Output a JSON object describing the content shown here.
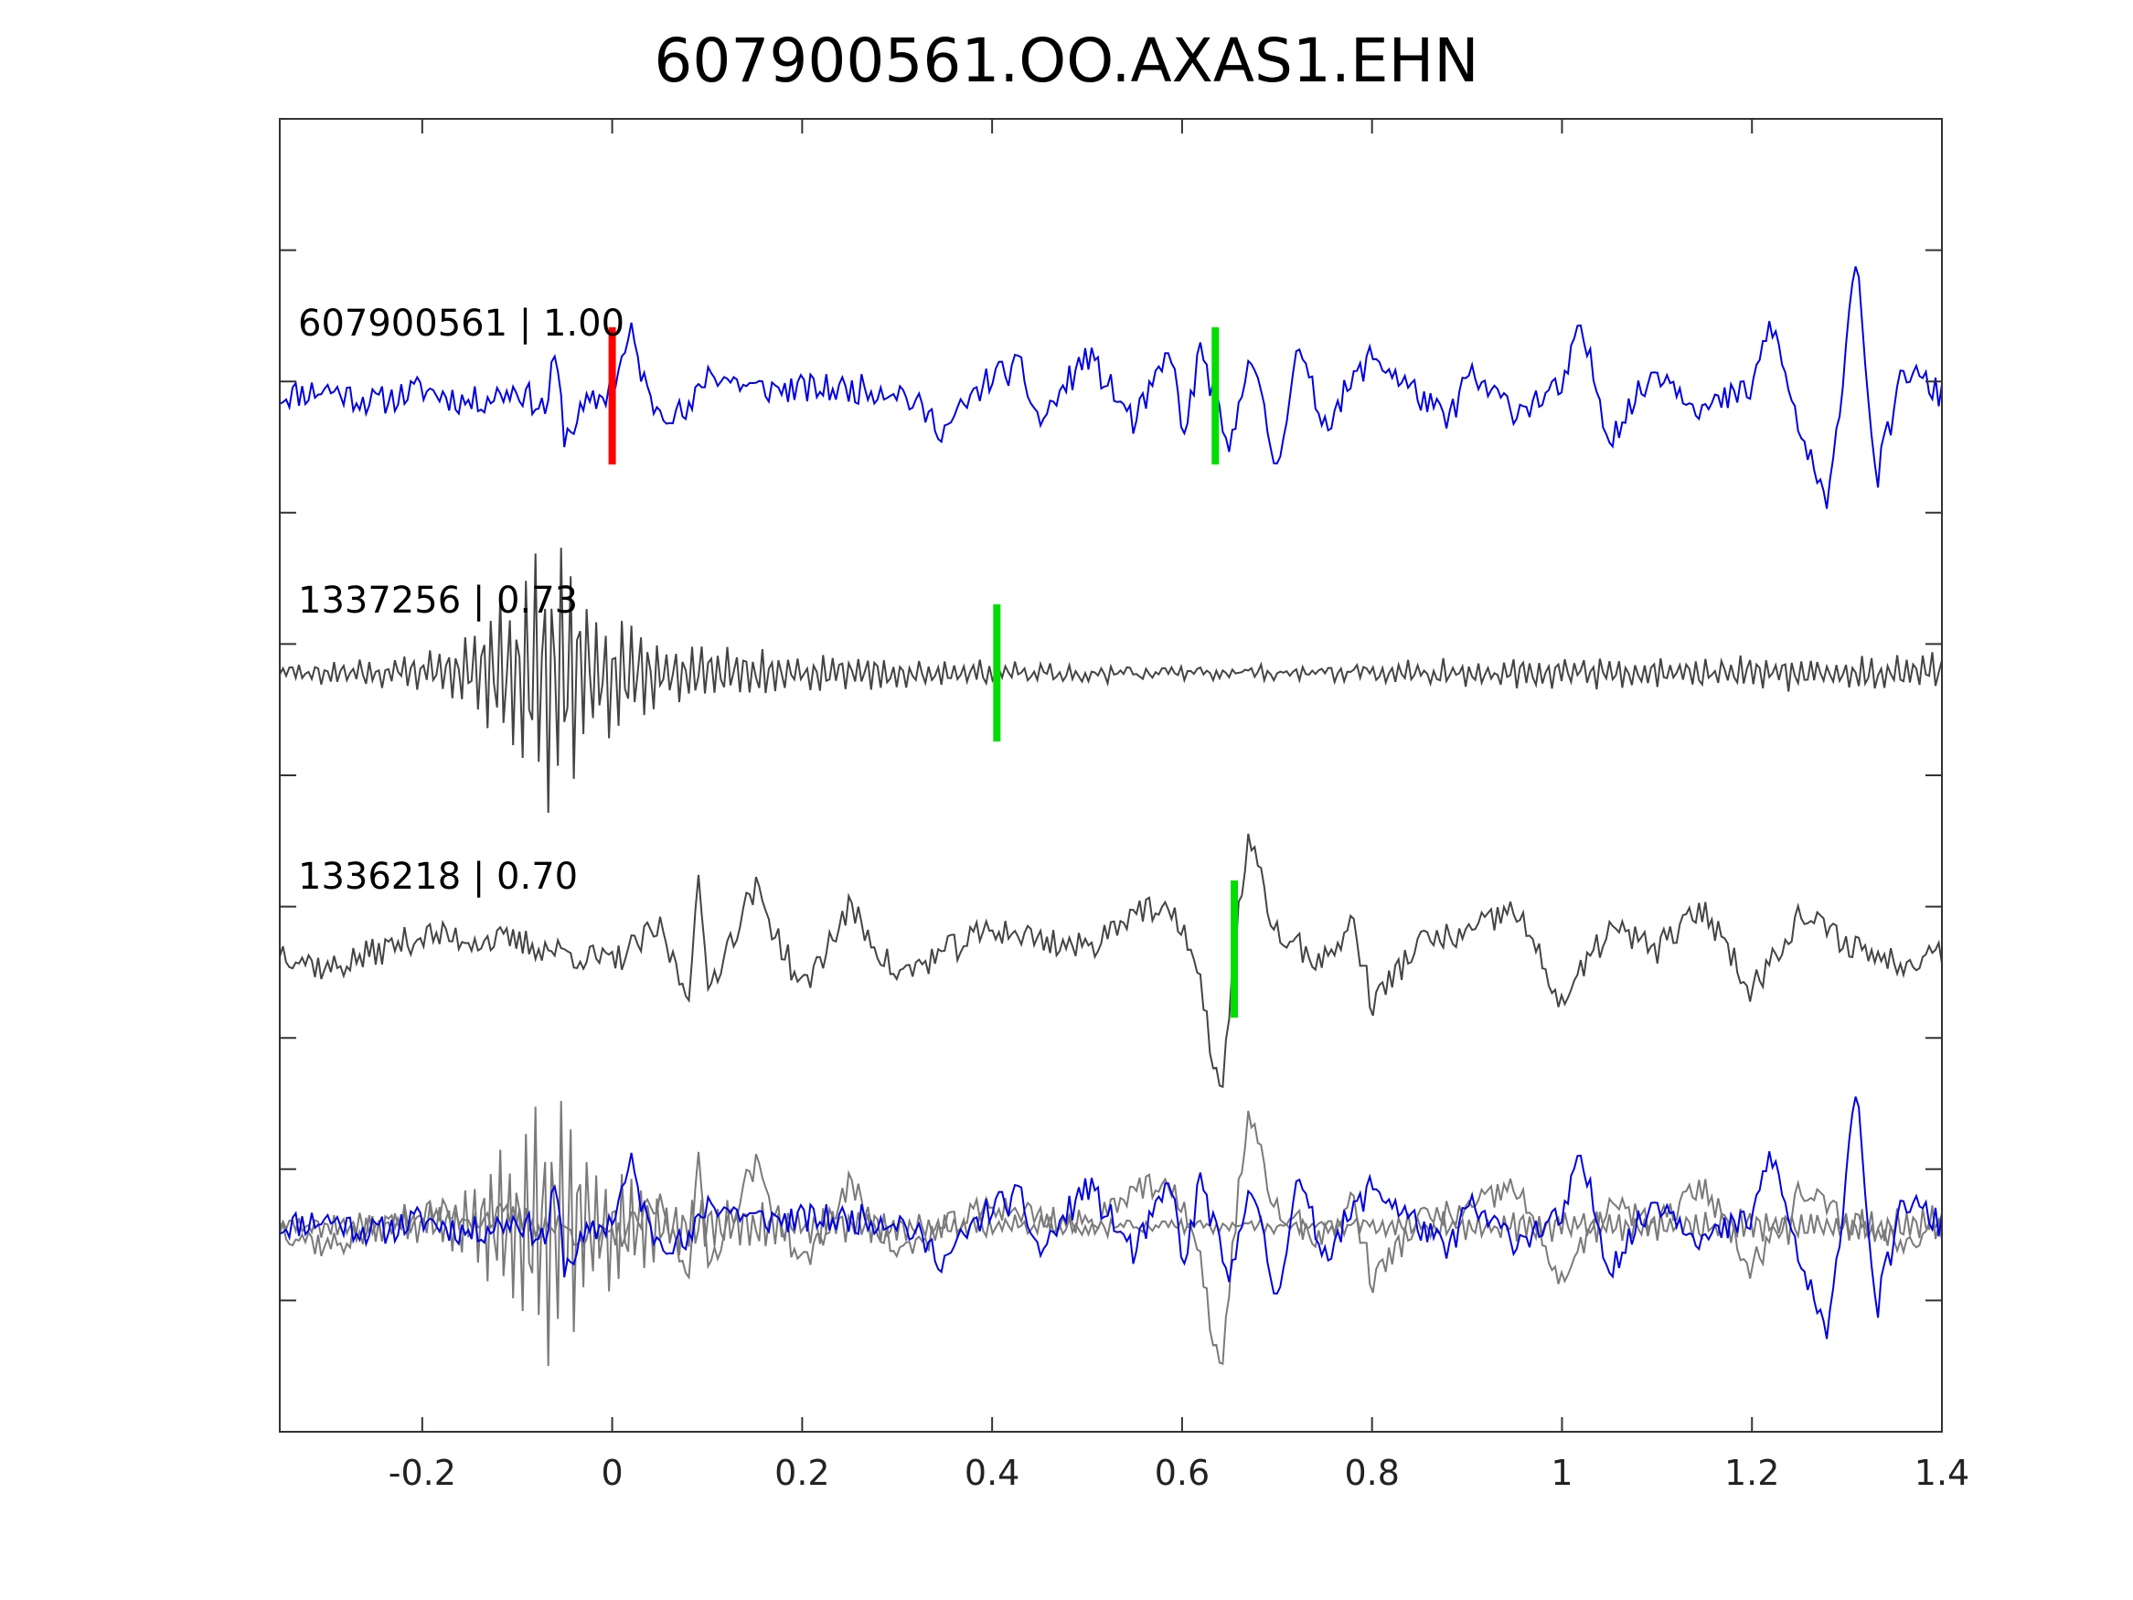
{
  "chart_data": {
    "type": "line",
    "title": "607900561.OO.AXAS1.EHN",
    "xlabel": "",
    "ylabel": "",
    "xlim": [
      -0.35,
      1.4
    ],
    "x_ticks": [
      "-0.2",
      "0",
      "0.2",
      "0.4",
      "0.6",
      "0.8",
      "1",
      "1.2",
      "1.4"
    ],
    "x_tick_values": [
      -0.2,
      0,
      0.2,
      0.4,
      0.6,
      0.8,
      1,
      1.2,
      1.4
    ],
    "y_tick_count": 9,
    "grid": false,
    "colors": {
      "master": "#0000e0",
      "template": "#444444",
      "overlay_template": "#7a7a7a",
      "pick_red": "#ff0000",
      "pick_green": "#00dd00",
      "axes": "#333333"
    },
    "traces": [
      {
        "id": "607900561",
        "score": "1.00",
        "label": "607900561 | 1.00",
        "color": "master",
        "red_pick_time": 0.0,
        "green_pick_time": 0.635,
        "shape": [
          [
            -0.35,
            0.0
          ],
          [
            -0.3,
            0.05
          ],
          [
            -0.25,
            -0.05
          ],
          [
            -0.2,
            0.05
          ],
          [
            -0.15,
            -0.05
          ],
          [
            -0.1,
            0.05
          ],
          [
            -0.07,
            -0.1
          ],
          [
            -0.06,
            0.3
          ],
          [
            -0.05,
            -0.3
          ],
          [
            -0.03,
            -0.1
          ],
          [
            0.0,
            0.05
          ],
          [
            0.02,
            0.45
          ],
          [
            0.04,
            -0.05
          ],
          [
            0.08,
            -0.15
          ],
          [
            0.1,
            0.18
          ],
          [
            0.15,
            0.05
          ],
          [
            0.3,
            0.05
          ],
          [
            0.35,
            -0.25
          ],
          [
            0.4,
            0.15
          ],
          [
            0.43,
            0.2
          ],
          [
            0.45,
            -0.2
          ],
          [
            0.5,
            0.3
          ],
          [
            0.55,
            -0.2
          ],
          [
            0.59,
            0.35
          ],
          [
            0.6,
            -0.35
          ],
          [
            0.62,
            0.35
          ],
          [
            0.65,
            -0.45
          ],
          [
            0.67,
            0.35
          ],
          [
            0.7,
            -0.55
          ],
          [
            0.72,
            0.35
          ],
          [
            0.75,
            -0.2
          ],
          [
            0.8,
            0.3
          ],
          [
            0.85,
            0.0
          ],
          [
            0.88,
            -0.2
          ],
          [
            0.9,
            0.15
          ],
          [
            0.95,
            -0.1
          ],
          [
            1.0,
            0.05
          ],
          [
            1.02,
            0.5
          ],
          [
            1.05,
            -0.3
          ],
          [
            1.1,
            0.2
          ],
          [
            1.15,
            -0.1
          ],
          [
            1.2,
            0.05
          ],
          [
            1.22,
            0.55
          ],
          [
            1.25,
            -0.25
          ],
          [
            1.28,
            -0.85
          ],
          [
            1.31,
            1.1
          ],
          [
            1.33,
            -0.65
          ],
          [
            1.36,
            0.2
          ],
          [
            1.4,
            0.0
          ]
        ],
        "seed": 11
      },
      {
        "id": "1337256",
        "score": "0.73",
        "label": "1337256 | 0.73",
        "color": "template",
        "green_pick_time": 0.405,
        "shape": [
          [
            -0.35,
            0.05
          ],
          [
            -0.25,
            0.1
          ],
          [
            -0.2,
            0.15
          ],
          [
            -0.15,
            0.3
          ],
          [
            -0.1,
            0.7
          ],
          [
            -0.08,
            1.1
          ],
          [
            -0.06,
            1.1
          ],
          [
            -0.04,
            0.9
          ],
          [
            -0.02,
            0.6
          ],
          [
            0.0,
            0.5
          ],
          [
            0.02,
            0.5
          ],
          [
            0.05,
            0.2
          ],
          [
            0.1,
            0.2
          ],
          [
            0.15,
            0.2
          ],
          [
            0.2,
            0.15
          ],
          [
            0.3,
            0.12
          ],
          [
            0.4,
            0.1
          ],
          [
            0.45,
            0.06
          ],
          [
            0.6,
            0.05
          ],
          [
            0.8,
            0.05
          ],
          [
            1.0,
            0.1
          ],
          [
            1.2,
            0.1
          ],
          [
            1.4,
            0.15
          ]
        ],
        "noise": true,
        "seed": 23
      },
      {
        "id": "1336218",
        "score": "0.70",
        "label": "1336218 | 0.70",
        "color": "template",
        "green_pick_time": 0.655,
        "shape": [
          [
            -0.35,
            0.0
          ],
          [
            -0.3,
            -0.15
          ],
          [
            -0.2,
            0.1
          ],
          [
            -0.1,
            0.05
          ],
          [
            0.0,
            -0.1
          ],
          [
            0.05,
            0.15
          ],
          [
            0.08,
            -0.35
          ],
          [
            0.09,
            0.55
          ],
          [
            0.1,
            -0.3
          ],
          [
            0.15,
            0.45
          ],
          [
            0.2,
            -0.3
          ],
          [
            0.25,
            0.3
          ],
          [
            0.3,
            -0.2
          ],
          [
            0.4,
            0.15
          ],
          [
            0.5,
            0.0
          ],
          [
            0.55,
            0.3
          ],
          [
            0.6,
            0.2
          ],
          [
            0.62,
            -0.3
          ],
          [
            0.64,
            -1.1
          ],
          [
            0.66,
            0.3
          ],
          [
            0.67,
            0.8
          ],
          [
            0.7,
            0.1
          ],
          [
            0.75,
            -0.1
          ],
          [
            0.78,
            0.2
          ],
          [
            0.8,
            -0.4
          ],
          [
            0.85,
            0.05
          ],
          [
            0.9,
            0.1
          ],
          [
            0.95,
            0.3
          ],
          [
            1.0,
            -0.4
          ],
          [
            1.05,
            0.15
          ],
          [
            1.1,
            0.0
          ],
          [
            1.15,
            0.3
          ],
          [
            1.2,
            -0.3
          ],
          [
            1.25,
            0.25
          ],
          [
            1.3,
            0.05
          ],
          [
            1.35,
            -0.1
          ],
          [
            1.4,
            0.0
          ]
        ],
        "seed": 37
      }
    ]
  }
}
